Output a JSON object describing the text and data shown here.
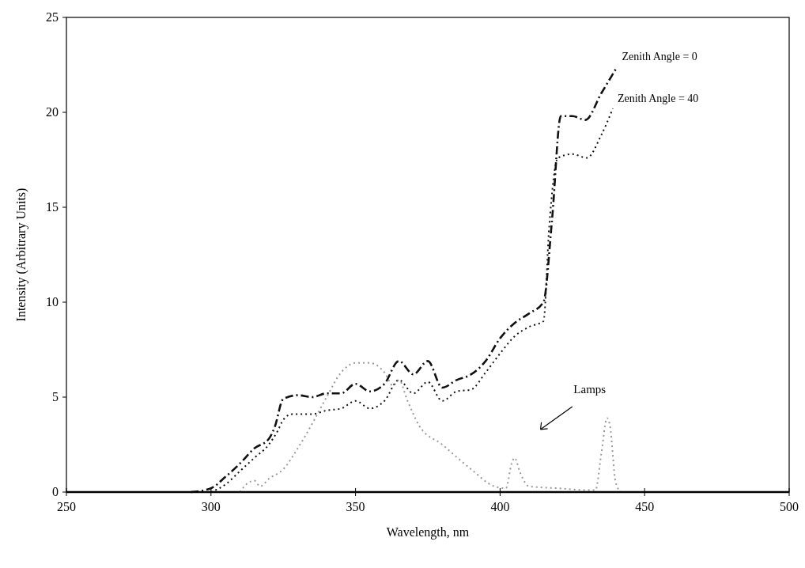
{
  "chart_data": {
    "type": "line",
    "xlabel": "Wavelength, nm",
    "ylabel": "Intensity (Arbitrary Units)",
    "xlim": [
      250,
      500
    ],
    "ylim": [
      0,
      25
    ],
    "xticks": [
      250,
      300,
      350,
      400,
      450,
      500
    ],
    "yticks": [
      0,
      5,
      10,
      15,
      20,
      25
    ],
    "grid": false,
    "marker": "none",
    "annotations": [
      "Lamps"
    ],
    "series": [
      {
        "name": "Zenith Angle = 0",
        "color": "#111111",
        "line_style": "dashed",
        "x": [
          293,
          300,
          305,
          310,
          315,
          320,
          322,
          325,
          330,
          335,
          340,
          345,
          350,
          355,
          360,
          365,
          370,
          375,
          380,
          385,
          390,
          395,
          400,
          405,
          410,
          415,
          418,
          421,
          425,
          429.5,
          435,
          440.5
        ],
        "values": [
          0,
          0.2,
          0.8,
          1.5,
          2.3,
          2.8,
          3.4,
          4.9,
          5.1,
          5.0,
          5.2,
          5.2,
          5.7,
          5.3,
          5.7,
          6.9,
          6.2,
          6.9,
          5.5,
          5.9,
          6.2,
          6.9,
          8.1,
          8.9,
          9.4,
          10.0,
          14.4,
          19.8,
          19.8,
          19.6,
          21.0,
          22.4
        ]
      },
      {
        "name": "Zenith Angle = 40",
        "color": "#111111",
        "line_style": "dotted",
        "x": [
          300,
          305,
          310,
          315,
          320,
          323,
          325,
          328,
          335,
          340,
          345,
          350,
          355,
          360,
          365,
          370,
          375,
          380,
          385,
          390,
          395,
          400,
          405,
          410,
          415,
          417,
          420,
          425,
          430,
          435,
          439
        ],
        "values": [
          0,
          0.4,
          1.1,
          1.8,
          2.5,
          3.2,
          3.8,
          4.1,
          4.1,
          4.3,
          4.4,
          4.8,
          4.4,
          4.8,
          5.9,
          5.2,
          5.8,
          4.8,
          5.3,
          5.4,
          6.3,
          7.3,
          8.2,
          8.7,
          9.0,
          14.0,
          17.6,
          17.8,
          17.6,
          18.8,
          20.2
        ]
      },
      {
        "color": "#999999",
        "line_style": "dotted",
        "x": [
          310,
          313,
          315,
          317,
          320,
          325,
          330,
          335,
          340,
          345,
          350,
          355,
          360,
          363,
          365,
          368,
          372,
          380,
          390,
          398,
          402,
          404,
          405,
          407,
          410,
          420,
          430,
          433,
          435,
          437,
          438,
          440,
          442,
          460
        ],
        "values": [
          0,
          0.5,
          0.6,
          0.3,
          0.7,
          1.2,
          2.3,
          3.6,
          5.0,
          6.3,
          6.8,
          6.8,
          6.3,
          5.6,
          5.9,
          4.8,
          3.5,
          2.5,
          1.2,
          0.3,
          0.2,
          1.5,
          1.8,
          1.0,
          0.3,
          0.2,
          0.1,
          0.1,
          2.0,
          3.9,
          3.5,
          0.5,
          0,
          0
        ]
      }
    ]
  }
}
